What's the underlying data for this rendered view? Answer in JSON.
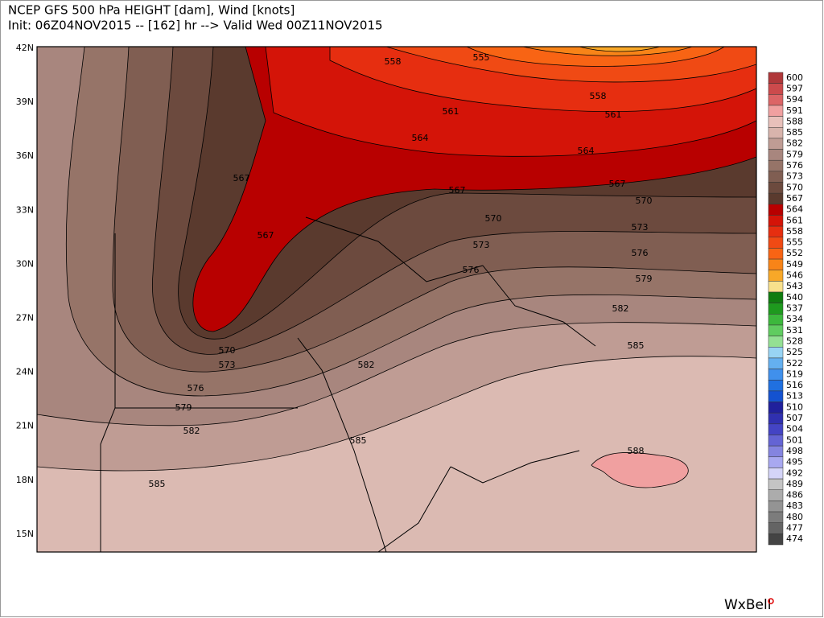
{
  "header": {
    "title": "NCEP GFS 500 hPa HEIGHT [dam], Wind [knots]",
    "subtitle": "Init: 06Z04NOV2015 -- [162] hr --> Valid Wed 00Z11NOV2015"
  },
  "map": {
    "lat_labels": [
      "42N",
      "39N",
      "36N",
      "33N",
      "30N",
      "27N",
      "24N",
      "21N",
      "18N",
      "15N"
    ],
    "contour_labels": [
      "558",
      "555",
      "561",
      "558",
      "561",
      "564",
      "564",
      "567",
      "567",
      "567",
      "570",
      "567",
      "570",
      "573",
      "573",
      "576",
      "576",
      "579",
      "582",
      "585",
      "570",
      "573",
      "582",
      "576",
      "579",
      "582",
      "585",
      "585",
      "588"
    ]
  },
  "colorbar": [
    {
      "label": "600",
      "color": "#b0383a"
    },
    {
      "label": "597",
      "color": "#cc4a4c"
    },
    {
      "label": "594",
      "color": "#dc6466"
    },
    {
      "label": "591",
      "color": "#f0a0a0"
    },
    {
      "label": "588",
      "color": "#e8c0ba"
    },
    {
      "label": "585",
      "color": "#d8b4ac"
    },
    {
      "label": "582",
      "color": "#bf9c94"
    },
    {
      "label": "579",
      "color": "#a8867e"
    },
    {
      "label": "576",
      "color": "#967468"
    },
    {
      "label": "573",
      "color": "#805e52"
    },
    {
      "label": "570",
      "color": "#6c4a3e"
    },
    {
      "label": "567",
      "color": "#5a3a2e"
    },
    {
      "label": "564",
      "color": "#b80000"
    },
    {
      "label": "561",
      "color": "#d41408"
    },
    {
      "label": "558",
      "color": "#e62e10"
    },
    {
      "label": "555",
      "color": "#f04a14"
    },
    {
      "label": "552",
      "color": "#f86414"
    },
    {
      "label": "549",
      "color": "#f88418"
    },
    {
      "label": "546",
      "color": "#f8a828"
    },
    {
      "label": "543",
      "color": "#f8e08c"
    },
    {
      "label": "540",
      "color": "#107c10"
    },
    {
      "label": "537",
      "color": "#1e9a1e"
    },
    {
      "label": "534",
      "color": "#3cb83c"
    },
    {
      "label": "531",
      "color": "#60cc60"
    },
    {
      "label": "528",
      "color": "#94e094"
    },
    {
      "label": "525",
      "color": "#98d4f4"
    },
    {
      "label": "522",
      "color": "#64b0f0"
    },
    {
      "label": "519",
      "color": "#4090ec"
    },
    {
      "label": "516",
      "color": "#2070e0"
    },
    {
      "label": "513",
      "color": "#1452d0"
    },
    {
      "label": "510",
      "color": "#20209c"
    },
    {
      "label": "507",
      "color": "#3030b0"
    },
    {
      "label": "504",
      "color": "#4444c4"
    },
    {
      "label": "501",
      "color": "#6464d4"
    },
    {
      "label": "498",
      "color": "#8484e0"
    },
    {
      "label": "495",
      "color": "#a8a8f0"
    },
    {
      "label": "492",
      "color": "#d4d4f8"
    },
    {
      "label": "489",
      "color": "#c4c4c4"
    },
    {
      "label": "486",
      "color": "#acacac"
    },
    {
      "label": "483",
      "color": "#949494"
    },
    {
      "label": "480",
      "color": "#7c7c7c"
    },
    {
      "label": "477",
      "color": "#646464"
    },
    {
      "label": "474",
      "color": "#444444"
    }
  ],
  "logo": "WxBell"
}
